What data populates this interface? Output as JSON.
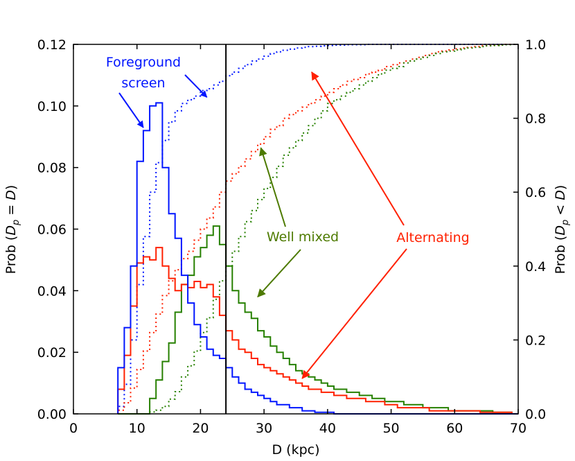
{
  "chart_data": {
    "type": "step-histogram",
    "xlabel": "D (kpc)",
    "ylabel_left_prefix": "Prob (",
    "ylabel_left_math": "D",
    "ylabel_left_sub": "p",
    "ylabel_left_op": " = ",
    "ylabel_left_math2": "D",
    "ylabel_left_suffix": ")",
    "ylabel_right_prefix": "Prob (",
    "ylabel_right_math": "D",
    "ylabel_right_sub": "p",
    "ylabel_right_op": " < ",
    "ylabel_right_math2": "D",
    "ylabel_right_suffix": ")",
    "xlim": [
      0,
      70
    ],
    "ylim_left": [
      0,
      0.12
    ],
    "ylim_right": [
      0,
      1.0
    ],
    "xticks": [
      "0",
      "10",
      "20",
      "30",
      "40",
      "50",
      "60",
      "70"
    ],
    "xtick_values": [
      0,
      10,
      20,
      30,
      40,
      50,
      60,
      70
    ],
    "yticks_left": [
      "0.00",
      "0.02",
      "0.04",
      "0.06",
      "0.08",
      "0.10",
      "0.12"
    ],
    "ytick_left_values": [
      0,
      0.02,
      0.04,
      0.06,
      0.08,
      0.1,
      0.12
    ],
    "yticks_right": [
      "0.0",
      "0.2",
      "0.4",
      "0.6",
      "0.8",
      "1.0"
    ],
    "ytick_right_values": [
      0,
      0.2,
      0.4,
      0.6,
      0.8,
      1.0
    ],
    "vertical_line_x": 24,
    "bin_edges": [
      7,
      8,
      9,
      10,
      11,
      12,
      13,
      14,
      15,
      16,
      17,
      18,
      19,
      20,
      21,
      22,
      23,
      24,
      25,
      26,
      27,
      28,
      29,
      30,
      31,
      32,
      33,
      34,
      35,
      36,
      37,
      38,
      39,
      40,
      41,
      42,
      43,
      44,
      45,
      46,
      47,
      48,
      49,
      50,
      51,
      52,
      53,
      54,
      55,
      56,
      57,
      58,
      59,
      60,
      61,
      62,
      63,
      64,
      65,
      66,
      67,
      68,
      69,
      70
    ],
    "series": [
      {
        "name": "Foreground screen",
        "color": "#0015ff",
        "pdf": [
          0.015,
          0.028,
          0.048,
          0.082,
          0.092,
          0.1,
          0.101,
          0.08,
          0.065,
          0.057,
          0.045,
          0.036,
          0.029,
          0.025,
          0.021,
          0.019,
          0.018,
          0.015,
          0.012,
          0.01,
          0.008,
          0.007,
          0.006,
          0.005,
          0.004,
          0.003,
          0.003,
          0.002,
          0.002,
          0.001,
          0.001,
          0.0005,
          0.0005,
          0.0005,
          0,
          0,
          0,
          0,
          0,
          0,
          0,
          0,
          0,
          0,
          0,
          0,
          0,
          0,
          0,
          0,
          0,
          0,
          0,
          0,
          0,
          0,
          0,
          0,
          0,
          0,
          0,
          0,
          0
        ],
        "cdf": [
          0.02,
          0.08,
          0.2,
          0.35,
          0.48,
          0.6,
          0.68,
          0.74,
          0.79,
          0.82,
          0.84,
          0.85,
          0.86,
          0.875,
          0.88,
          0.89,
          0.9,
          0.915,
          0.925,
          0.935,
          0.945,
          0.955,
          0.96,
          0.968,
          0.975,
          0.98,
          0.984,
          0.987,
          0.99,
          0.992,
          0.994,
          0.995,
          0.996,
          0.997,
          0.998,
          0.998,
          0.999,
          0.999,
          0.999,
          1,
          1,
          1,
          1,
          1,
          1,
          1,
          1,
          1,
          1,
          1,
          1,
          1,
          1,
          1,
          1,
          1,
          1,
          1,
          1,
          1,
          1,
          1,
          1
        ]
      },
      {
        "name": "Alternating",
        "color": "#ff2000",
        "pdf": [
          0.008,
          0.019,
          0.035,
          0.049,
          0.051,
          0.05,
          0.054,
          0.048,
          0.044,
          0.04,
          0.042,
          0.041,
          0.043,
          0.041,
          0.042,
          0.038,
          0.032,
          0.027,
          0.024,
          0.021,
          0.02,
          0.018,
          0.016,
          0.015,
          0.014,
          0.013,
          0.012,
          0.011,
          0.01,
          0.009,
          0.008,
          0.008,
          0.007,
          0.007,
          0.006,
          0.006,
          0.005,
          0.005,
          0.005,
          0.004,
          0.004,
          0.004,
          0.003,
          0.003,
          0.002,
          0.002,
          0.002,
          0.002,
          0.002,
          0.001,
          0.001,
          0.001,
          0.001,
          0.001,
          0.001,
          0.001,
          0.001,
          0.0005,
          0.0005,
          0.0005,
          0.0005,
          0.0005,
          0
        ],
        "cdf": [
          0.01,
          0.03,
          0.07,
          0.12,
          0.17,
          0.22,
          0.27,
          0.32,
          0.36,
          0.39,
          0.42,
          0.44,
          0.47,
          0.5,
          0.53,
          0.56,
          0.6,
          0.63,
          0.65,
          0.67,
          0.69,
          0.71,
          0.73,
          0.75,
          0.77,
          0.78,
          0.8,
          0.81,
          0.82,
          0.83,
          0.84,
          0.85,
          0.86,
          0.87,
          0.88,
          0.89,
          0.9,
          0.905,
          0.91,
          0.92,
          0.925,
          0.93,
          0.94,
          0.945,
          0.95,
          0.955,
          0.96,
          0.965,
          0.97,
          0.975,
          0.98,
          0.982,
          0.985,
          0.988,
          0.99,
          0.992,
          0.994,
          0.996,
          0.997,
          0.998,
          0.999,
          1,
          1
        ]
      },
      {
        "name": "Well mixed",
        "color": "#268000",
        "pdf": [
          0,
          0,
          0,
          0,
          0,
          0.005,
          0.011,
          0.017,
          0.023,
          0.033,
          0.042,
          0.045,
          0.051,
          0.054,
          0.058,
          0.061,
          0.055,
          0.048,
          0.04,
          0.036,
          0.033,
          0.031,
          0.027,
          0.025,
          0.022,
          0.02,
          0.018,
          0.016,
          0.014,
          0.013,
          0.012,
          0.011,
          0.01,
          0.009,
          0.008,
          0.008,
          0.007,
          0.007,
          0.006,
          0.006,
          0.005,
          0.005,
          0.004,
          0.004,
          0.004,
          0.003,
          0.003,
          0.003,
          0.002,
          0.002,
          0.002,
          0.002,
          0.001,
          0.001,
          0.001,
          0.001,
          0.001,
          0.001,
          0.001,
          0.0005,
          0.0005,
          0.0005,
          0
        ],
        "cdf": [
          0,
          0,
          0,
          0,
          0,
          0.005,
          0.01,
          0.02,
          0.04,
          0.06,
          0.1,
          0.13,
          0.17,
          0.22,
          0.26,
          0.31,
          0.36,
          0.4,
          0.44,
          0.48,
          0.52,
          0.55,
          0.58,
          0.61,
          0.64,
          0.67,
          0.7,
          0.72,
          0.74,
          0.76,
          0.78,
          0.8,
          0.82,
          0.84,
          0.85,
          0.86,
          0.87,
          0.88,
          0.89,
          0.9,
          0.91,
          0.92,
          0.93,
          0.935,
          0.94,
          0.95,
          0.955,
          0.96,
          0.965,
          0.97,
          0.975,
          0.98,
          0.982,
          0.985,
          0.988,
          0.99,
          0.992,
          0.994,
          0.996,
          0.997,
          0.998,
          0.999,
          1
        ]
      }
    ],
    "annotations": [
      {
        "id": "fg",
        "lines": [
          "Foreground",
          "screen"
        ],
        "color": "#0015ff",
        "arrows": [
          [
            11,
            0.093
          ],
          [
            21,
            0.857
          ]
        ],
        "arrow_axes": [
          "left",
          "right"
        ]
      },
      {
        "id": "wm",
        "lines": [
          "Well mixed"
        ],
        "color": "#4d7a00",
        "arrows": [
          [
            29.5,
            0.72
          ],
          [
            29,
            0.038
          ]
        ],
        "arrow_axes": [
          "right",
          "left"
        ]
      },
      {
        "id": "alt",
        "lines": [
          "Alternating"
        ],
        "color": "#ff2000",
        "arrows": [
          [
            37.5,
            0.925
          ],
          [
            36,
            0.0115
          ]
        ],
        "arrow_axes": [
          "right",
          "left"
        ]
      }
    ]
  }
}
